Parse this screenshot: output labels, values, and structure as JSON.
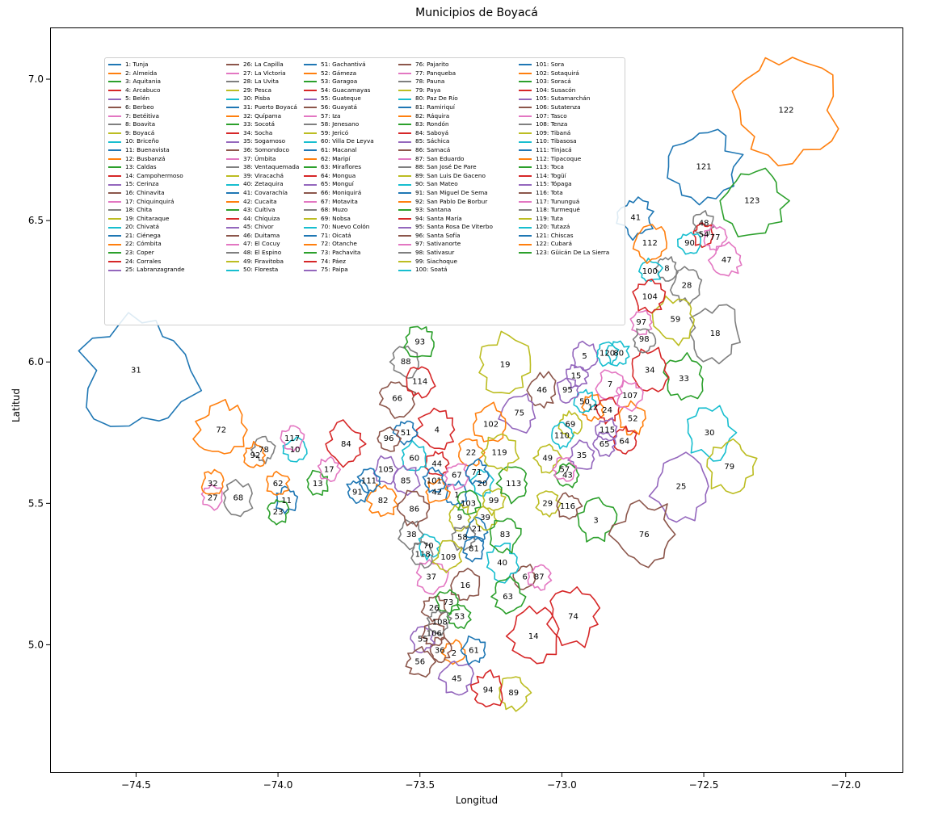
{
  "chart_data": {
    "type": "map",
    "title": "Municipios de Boyacá",
    "xlabel": "Longitud",
    "ylabel": "Latitud",
    "xlim": [
      -74.8,
      -71.8
    ],
    "ylim": [
      4.55,
      7.18
    ],
    "xticks": [
      -74.5,
      -74.0,
      -73.5,
      -73.0,
      -72.5,
      -72.0
    ],
    "yticks": [
      5.0,
      5.5,
      6.0,
      6.5,
      7.0
    ],
    "xtick_labels": [
      "−74.5",
      "−74.0",
      "−73.5",
      "−73.0",
      "−72.5",
      "−72.0"
    ],
    "ytick_labels": [
      "5.0",
      "5.5",
      "6.0",
      "6.5",
      "7.0"
    ],
    "grid": false,
    "legend_position": "top-left",
    "legend_columns": 5,
    "colors": [
      "#1f77b4",
      "#ff7f0e",
      "#2ca02c",
      "#d62728",
      "#9467bd",
      "#8c564b",
      "#e377c2",
      "#7f7f7f",
      "#bcbd22",
      "#17becf"
    ],
    "municipalities": [
      {
        "id": 1,
        "name": "Tunja",
        "lon": -73.37,
        "lat": 5.53
      },
      {
        "id": 2,
        "name": "Almeida",
        "lon": -73.38,
        "lat": 4.97
      },
      {
        "id": 3,
        "name": "Aquitania",
        "lon": -72.88,
        "lat": 5.44
      },
      {
        "id": 4,
        "name": "Arcabuco",
        "lon": -73.44,
        "lat": 5.76
      },
      {
        "id": 5,
        "name": "Belén",
        "lon": -72.92,
        "lat": 6.02
      },
      {
        "id": 6,
        "name": "Berbeo",
        "lon": -73.13,
        "lat": 5.24
      },
      {
        "id": 7,
        "name": "Betéitiva",
        "lon": -72.83,
        "lat": 5.92
      },
      {
        "id": 8,
        "name": "Boavita",
        "lon": -72.63,
        "lat": 6.33
      },
      {
        "id": 9,
        "name": "Boyacá",
        "lon": -73.36,
        "lat": 5.45
      },
      {
        "id": 10,
        "name": "Briceño",
        "lon": -73.94,
        "lat": 5.69
      },
      {
        "id": 11,
        "name": "Buenavista",
        "lon": -73.97,
        "lat": 5.51
      },
      {
        "id": 12,
        "name": "Busbanzá",
        "lon": -72.89,
        "lat": 5.84
      },
      {
        "id": 13,
        "name": "Caldas",
        "lon": -73.86,
        "lat": 5.57
      },
      {
        "id": 14,
        "name": "Campohermoso",
        "lon": -73.1,
        "lat": 5.03
      },
      {
        "id": 15,
        "name": "Cerinza",
        "lon": -72.95,
        "lat": 5.95
      },
      {
        "id": 16,
        "name": "Chinavita",
        "lon": -73.34,
        "lat": 5.21
      },
      {
        "id": 17,
        "name": "Chiquinquirá",
        "lon": -73.82,
        "lat": 5.62
      },
      {
        "id": 18,
        "name": "Chita",
        "lon": -72.46,
        "lat": 6.1
      },
      {
        "id": 19,
        "name": "Chitaraque",
        "lon": -73.2,
        "lat": 5.99
      },
      {
        "id": 20,
        "name": "Chivatá",
        "lon": -73.28,
        "lat": 5.57
      },
      {
        "id": 21,
        "name": "Ciénega",
        "lon": -73.3,
        "lat": 5.41
      },
      {
        "id": 22,
        "name": "Cómbita",
        "lon": -73.32,
        "lat": 5.68
      },
      {
        "id": 23,
        "name": "Coper",
        "lon": -74.0,
        "lat": 5.47
      },
      {
        "id": 24,
        "name": "Corrales",
        "lon": -72.84,
        "lat": 5.83
      },
      {
        "id": 25,
        "name": "Labranzagrande",
        "lon": -72.58,
        "lat": 5.56
      },
      {
        "id": 26,
        "name": "La Capilla",
        "lon": -73.45,
        "lat": 5.13
      },
      {
        "id": 27,
        "name": "La Victoria",
        "lon": -74.23,
        "lat": 5.52
      },
      {
        "id": 28,
        "name": "La Uvita",
        "lon": -72.56,
        "lat": 6.27
      },
      {
        "id": 29,
        "name": "Pesca",
        "lon": -73.05,
        "lat": 5.5
      },
      {
        "id": 30,
        "name": "Pisba",
        "lon": -72.48,
        "lat": 5.75
      },
      {
        "id": 31,
        "name": "Puerto Boyacá",
        "lon": -74.5,
        "lat": 5.97
      },
      {
        "id": 32,
        "name": "Quípama",
        "lon": -74.23,
        "lat": 5.57
      },
      {
        "id": 33,
        "name": "Socotá",
        "lon": -72.57,
        "lat": 5.94
      },
      {
        "id": 34,
        "name": "Socha",
        "lon": -72.69,
        "lat": 5.97
      },
      {
        "id": 35,
        "name": "Sogamoso",
        "lon": -72.93,
        "lat": 5.67
      },
      {
        "id": 36,
        "name": "Somondoco",
        "lon": -73.43,
        "lat": 4.98
      },
      {
        "id": 37,
        "name": "Úmbita",
        "lon": -73.46,
        "lat": 5.24
      },
      {
        "id": 38,
        "name": "Ventaquemada",
        "lon": -73.53,
        "lat": 5.39
      },
      {
        "id": 39,
        "name": "Viracachá",
        "lon": -73.27,
        "lat": 5.45
      },
      {
        "id": 40,
        "name": "Zetaquira",
        "lon": -73.21,
        "lat": 5.29
      },
      {
        "id": 41,
        "name": "Covarachía",
        "lon": -72.74,
        "lat": 6.51
      },
      {
        "id": 42,
        "name": "Cucaita",
        "lon": -73.44,
        "lat": 5.54
      },
      {
        "id": 43,
        "name": "Cuítiva",
        "lon": -72.98,
        "lat": 5.6
      },
      {
        "id": 44,
        "name": "Chíquiza",
        "lon": -73.44,
        "lat": 5.64
      },
      {
        "id": 45,
        "name": "Chivor",
        "lon": -73.37,
        "lat": 4.88
      },
      {
        "id": 46,
        "name": "Duitama",
        "lon": -73.07,
        "lat": 5.9
      },
      {
        "id": 47,
        "name": "El Cocuy",
        "lon": -72.42,
        "lat": 6.36
      },
      {
        "id": 48,
        "name": "El Espino",
        "lon": -72.5,
        "lat": 6.49
      },
      {
        "id": 49,
        "name": "Firavitoba",
        "lon": -73.05,
        "lat": 5.66
      },
      {
        "id": 50,
        "name": "Floresta",
        "lon": -72.92,
        "lat": 5.86
      },
      {
        "id": 51,
        "name": "Gachantivá",
        "lon": -73.55,
        "lat": 5.75
      },
      {
        "id": 52,
        "name": "Gámeza",
        "lon": -72.75,
        "lat": 5.8
      },
      {
        "id": 53,
        "name": "Garagoa",
        "lon": -73.36,
        "lat": 5.1
      },
      {
        "id": 54,
        "name": "Guacamayas",
        "lon": -72.5,
        "lat": 6.45
      },
      {
        "id": 55,
        "name": "Guateque",
        "lon": -73.49,
        "lat": 5.02
      },
      {
        "id": 56,
        "name": "Guayatá",
        "lon": -73.5,
        "lat": 4.94
      },
      {
        "id": 57,
        "name": "Iza",
        "lon": -72.99,
        "lat": 5.62
      },
      {
        "id": 58,
        "name": "Jenesano",
        "lon": -73.35,
        "lat": 5.38
      },
      {
        "id": 59,
        "name": "Jericó",
        "lon": -72.6,
        "lat": 6.15
      },
      {
        "id": 60,
        "name": "Villa De Leyva",
        "lon": -73.52,
        "lat": 5.66
      },
      {
        "id": 61,
        "name": "Macanal",
        "lon": -73.31,
        "lat": 4.98
      },
      {
        "id": 62,
        "name": "Maripí",
        "lon": -74.0,
        "lat": 5.57
      },
      {
        "id": 63,
        "name": "Miraflores",
        "lon": -73.19,
        "lat": 5.17
      },
      {
        "id": 64,
        "name": "Mongua",
        "lon": -72.78,
        "lat": 5.72
      },
      {
        "id": 65,
        "name": "Monguí",
        "lon": -72.85,
        "lat": 5.71
      },
      {
        "id": 66,
        "name": "Moniquirá",
        "lon": -73.58,
        "lat": 5.87
      },
      {
        "id": 67,
        "name": "Motavita",
        "lon": -73.37,
        "lat": 5.6
      },
      {
        "id": 68,
        "name": "Muzo",
        "lon": -74.14,
        "lat": 5.52
      },
      {
        "id": 69,
        "name": "Nobsa",
        "lon": -72.97,
        "lat": 5.78
      },
      {
        "id": 70,
        "name": "Nuevo Colón",
        "lon": -73.47,
        "lat": 5.35
      },
      {
        "id": 71,
        "name": "Oicatá",
        "lon": -73.3,
        "lat": 5.61
      },
      {
        "id": 72,
        "name": "Otanche",
        "lon": -74.2,
        "lat": 5.76
      },
      {
        "id": 73,
        "name": "Pachavita",
        "lon": -73.4,
        "lat": 5.15
      },
      {
        "id": 74,
        "name": "Páez",
        "lon": -72.96,
        "lat": 5.1
      },
      {
        "id": 75,
        "name": "Paipa",
        "lon": -73.15,
        "lat": 5.82
      },
      {
        "id": 76,
        "name": "Pajarito",
        "lon": -72.71,
        "lat": 5.39
      },
      {
        "id": 77,
        "name": "Panqueba",
        "lon": -72.46,
        "lat": 6.44
      },
      {
        "id": 78,
        "name": "Pauna",
        "lon": -74.05,
        "lat": 5.69
      },
      {
        "id": 79,
        "name": "Paya",
        "lon": -72.41,
        "lat": 5.63
      },
      {
        "id": 80,
        "name": "Paz De Río",
        "lon": -72.8,
        "lat": 6.03
      },
      {
        "id": 81,
        "name": "Ramiriquí",
        "lon": -73.31,
        "lat": 5.34
      },
      {
        "id": 82,
        "name": "Ráquira",
        "lon": -73.63,
        "lat": 5.51
      },
      {
        "id": 83,
        "name": "Rondón",
        "lon": -73.2,
        "lat": 5.39
      },
      {
        "id": 84,
        "name": "Saboyá",
        "lon": -73.76,
        "lat": 5.71
      },
      {
        "id": 85,
        "name": "Sáchica",
        "lon": -73.55,
        "lat": 5.58
      },
      {
        "id": 86,
        "name": "Samacá",
        "lon": -73.52,
        "lat": 5.48
      },
      {
        "id": 87,
        "name": "San Eduardo",
        "lon": -73.08,
        "lat": 5.24
      },
      {
        "id": 88,
        "name": "San José De Pare",
        "lon": -73.55,
        "lat": 6.0
      },
      {
        "id": 89,
        "name": "San Luis De Gaceno",
        "lon": -73.17,
        "lat": 4.83
      },
      {
        "id": 90,
        "name": "San Mateo",
        "lon": -72.55,
        "lat": 6.42
      },
      {
        "id": 91,
        "name": "San Miguel De Sema",
        "lon": -73.72,
        "lat": 5.54
      },
      {
        "id": 92,
        "name": "San Pablo De Borbur",
        "lon": -74.08,
        "lat": 5.67
      },
      {
        "id": 93,
        "name": "Santana",
        "lon": -73.5,
        "lat": 6.07
      },
      {
        "id": 94,
        "name": "Santa María",
        "lon": -73.26,
        "lat": 4.84
      },
      {
        "id": 95,
        "name": "Santa Rosa De Viterbo",
        "lon": -72.98,
        "lat": 5.9
      },
      {
        "id": 96,
        "name": "Santa Sofía",
        "lon": -73.61,
        "lat": 5.73
      },
      {
        "id": 97,
        "name": "Sativanorte",
        "lon": -72.72,
        "lat": 6.14
      },
      {
        "id": 98,
        "name": "Sativasur",
        "lon": -72.71,
        "lat": 6.08
      },
      {
        "id": 99,
        "name": "Siachoque",
        "lon": -73.24,
        "lat": 5.51
      },
      {
        "id": 100,
        "name": "Soatá",
        "lon": -72.69,
        "lat": 6.32
      },
      {
        "id": 101,
        "name": "Sora",
        "lon": -73.45,
        "lat": 5.58
      },
      {
        "id": 102,
        "name": "Sotaquirá",
        "lon": -73.25,
        "lat": 5.78
      },
      {
        "id": 103,
        "name": "Soracá",
        "lon": -73.33,
        "lat": 5.5
      },
      {
        "id": 104,
        "name": "Susacón",
        "lon": -72.69,
        "lat": 6.23
      },
      {
        "id": 105,
        "name": "Sutamarchán",
        "lon": -73.62,
        "lat": 5.62
      },
      {
        "id": 106,
        "name": "Sutatenza",
        "lon": -73.45,
        "lat": 5.04
      },
      {
        "id": 107,
        "name": "Tasco",
        "lon": -72.76,
        "lat": 5.88
      },
      {
        "id": 108,
        "name": "Tenza",
        "lon": -73.43,
        "lat": 5.08
      },
      {
        "id": 109,
        "name": "Tibaná",
        "lon": -73.4,
        "lat": 5.31
      },
      {
        "id": 110,
        "name": "Tibasosa",
        "lon": -73.0,
        "lat": 5.74
      },
      {
        "id": 111,
        "name": "Tinjacá",
        "lon": -73.68,
        "lat": 5.58
      },
      {
        "id": 112,
        "name": "Tipacoque",
        "lon": -72.69,
        "lat": 6.42
      },
      {
        "id": 113,
        "name": "Toca",
        "lon": -73.17,
        "lat": 5.57
      },
      {
        "id": 114,
        "name": "Togüí",
        "lon": -73.5,
        "lat": 5.93
      },
      {
        "id": 115,
        "name": "Tópaga",
        "lon": -72.84,
        "lat": 5.76
      },
      {
        "id": 116,
        "name": "Tota",
        "lon": -72.98,
        "lat": 5.49
      },
      {
        "id": 117,
        "name": "Tununguá",
        "lon": -73.95,
        "lat": 5.73
      },
      {
        "id": 118,
        "name": "Turmequé",
        "lon": -73.49,
        "lat": 5.32
      },
      {
        "id": 119,
        "name": "Tuta",
        "lon": -73.22,
        "lat": 5.68
      },
      {
        "id": 120,
        "name": "Tutazá",
        "lon": -72.84,
        "lat": 6.03
      },
      {
        "id": 121,
        "name": "Chiscas",
        "lon": -72.5,
        "lat": 6.69
      },
      {
        "id": 122,
        "name": "Cubará",
        "lon": -72.21,
        "lat": 6.89
      },
      {
        "id": 123,
        "name": "Güicán De La Sierra",
        "lon": -72.33,
        "lat": 6.57
      }
    ]
  }
}
